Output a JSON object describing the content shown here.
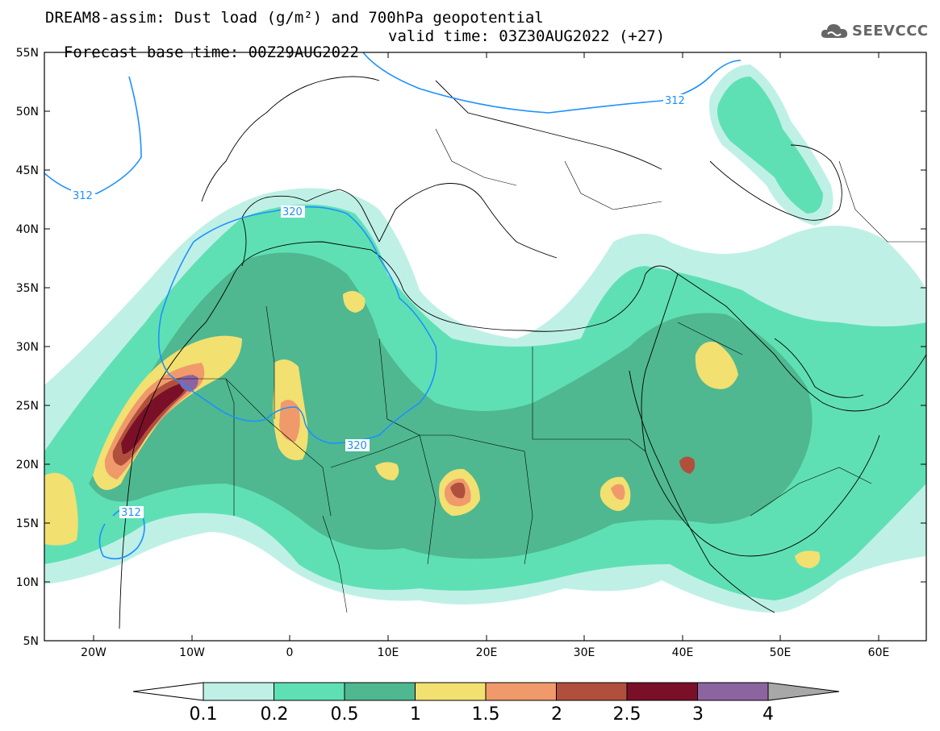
{
  "header": {
    "title_line1": "DREAM8-assim: Dust load (g/m²) and 700hPa geopotential",
    "base_time_label": "Forecast base time: 00Z29AUG2022",
    "valid_time_label": "valid time: 03Z30AUG2022 (+27)",
    "logo_text": "SEEVCCC",
    "logo_icon": "cloud-icon"
  },
  "axes": {
    "lat_labels": [
      "55N",
      "50N",
      "45N",
      "40N",
      "35N",
      "30N",
      "25N",
      "20N",
      "15N",
      "10N",
      "5N"
    ],
    "lon_labels": [
      "20W",
      "10W",
      "0",
      "10E",
      "20E",
      "30E",
      "40E",
      "50E",
      "60E"
    ]
  },
  "contours": {
    "color": "#1e90ff",
    "labels": [
      "312",
      "312",
      "320",
      "320",
      "312"
    ]
  },
  "colorbar": {
    "levels": [
      "0.1",
      "0.2",
      "0.5",
      "1",
      "1.5",
      "2",
      "2.5",
      "3",
      "4"
    ],
    "colors": [
      "#bff0e6",
      "#5fe0b4",
      "#4fb890",
      "#f2e070",
      "#f09a6c",
      "#b0503c",
      "#7a1028",
      "#8c64a0",
      "#a8a8a8"
    ],
    "under_color": "#ffffff"
  }
}
